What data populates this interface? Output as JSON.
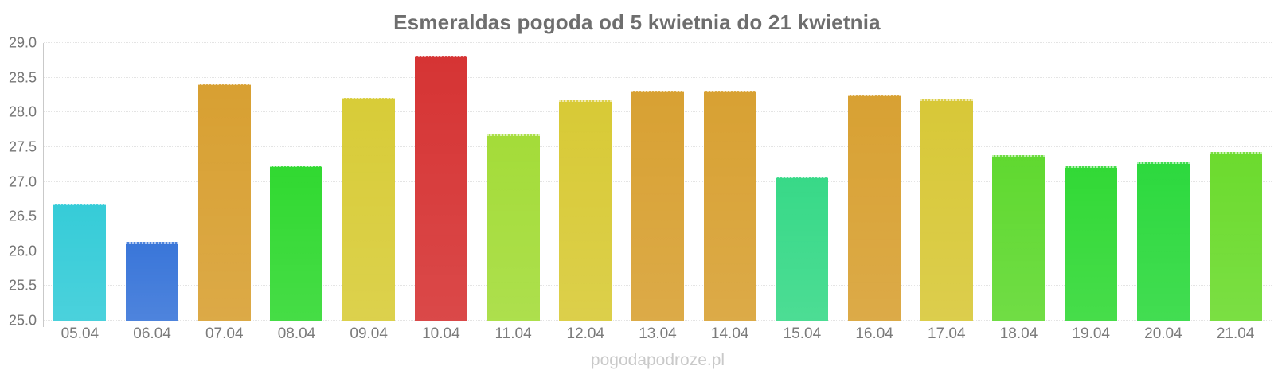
{
  "page": {
    "watermark": "pogodapodroze.pl"
  },
  "chart_data": {
    "type": "bar",
    "title": "Esmeraldas pogoda od 5 kwietnia do 21 kwietnia",
    "categories": [
      "05.04",
      "06.04",
      "07.04",
      "08.04",
      "09.04",
      "10.04",
      "11.04",
      "12.04",
      "13.04",
      "14.04",
      "15.04",
      "16.04",
      "17.04",
      "18.04",
      "19.04",
      "20.04",
      "21.04"
    ],
    "values": [
      26.68,
      26.14,
      28.41,
      27.24,
      28.21,
      28.82,
      27.68,
      28.17,
      28.31,
      28.31,
      27.08,
      28.26,
      28.19,
      27.38,
      27.22,
      27.28,
      27.43
    ],
    "bar_colors": [
      "#36ccd8",
      "#3a76d9",
      "#d8a032",
      "#31d931",
      "#d8cc38",
      "#d63434",
      "#a4dc39",
      "#d8ca36",
      "#d8a133",
      "#d8a133",
      "#38d988",
      "#d8a133",
      "#d8c838",
      "#60d930",
      "#32d936",
      "#2dd93e",
      "#6cdb2e"
    ],
    "xlabel": "",
    "ylabel": "",
    "ylim": [
      25.0,
      29.0
    ],
    "ytick_step": 0.5,
    "ytick_decimals": 1,
    "grid": true,
    "legend": false
  }
}
